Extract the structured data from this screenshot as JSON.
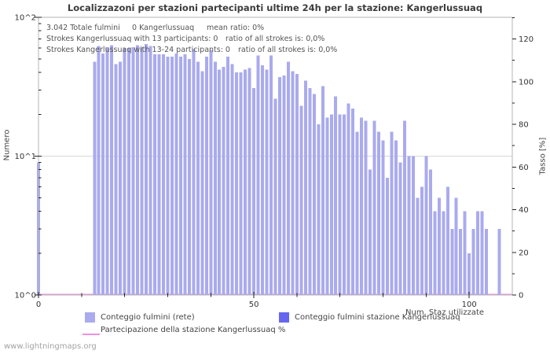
{
  "title": "Localizzazoni per stazioni partecipanti ultime 24h per la stazione: Kangerlussuaq",
  "watermark": "www.lightningmaps.org",
  "annotations": {
    "line1": [
      "3.042 Totale fulmini",
      "0 Kangerlussuaq",
      "mean ratio: 0%"
    ],
    "line2": [
      "Strokes Kangerlussuaq with 13 participants: 0",
      "ratio of all strokes is: 0,0%"
    ],
    "line3": [
      "Strokes Kangerlussuaq with 13-24 participants: 0",
      "ratio of all strokes is: 0,0%"
    ]
  },
  "legend": {
    "items": [
      {
        "label": "Conteggio fulmini (rete)",
        "color": "#aaaaee",
        "type": "box"
      },
      {
        "label": "Conteggio fulmini stazione Kangerlussuaq",
        "color": "#6666ee",
        "type": "box"
      },
      {
        "label": "Partecipazione della stazione Kangerlussuaq %",
        "color": "#ee90e0",
        "type": "line"
      }
    ]
  },
  "colors": {
    "network_bar": "#aaaaee",
    "station_bar": "#6666ee",
    "participation_line": "#ee90e0",
    "frame": "#b4b4b4",
    "gridline": "#d8d8d8",
    "tick": "#222222",
    "tick_label": "#333333"
  },
  "chart_data": {
    "type": "bar",
    "title": "Localizzazoni per stazioni partecipanti ultime 24h per la stazione: Kangerlussuaq",
    "x_axis": {
      "label": "Num. Staz utilizzate",
      "ticks": [
        0,
        50,
        100
      ],
      "minor_step": 10,
      "range": [
        0,
        110
      ]
    },
    "left_axis": {
      "label": "Numero",
      "scale": "log10",
      "ticks": [
        {
          "label": "10^0",
          "value": 1
        },
        {
          "label": "10^1",
          "value": 10
        },
        {
          "label": "10^2",
          "value": 100
        }
      ]
    },
    "right_axis": {
      "label": "Tasso [%]",
      "ticks": [
        0,
        20,
        40,
        60,
        80,
        100,
        120
      ],
      "minor_step": 10,
      "visible_max": 130
    },
    "grid": "horizontal line at 10^1 only",
    "legend_position": "bottom",
    "series": [
      {
        "name": "Conteggio fulmini (rete)",
        "type": "bar",
        "color": "#aaaaee",
        "x_meaning": "numero di stazioni utilizzate",
        "points": [
          [
            0,
            9
          ],
          [
            13,
            48
          ],
          [
            14,
            62
          ],
          [
            15,
            55
          ],
          [
            16,
            61
          ],
          [
            17,
            63
          ],
          [
            18,
            46
          ],
          [
            19,
            48
          ],
          [
            20,
            60
          ],
          [
            21,
            60
          ],
          [
            22,
            61
          ],
          [
            23,
            63
          ],
          [
            24,
            61
          ],
          [
            25,
            64
          ],
          [
            26,
            62
          ],
          [
            27,
            54
          ],
          [
            28,
            54
          ],
          [
            29,
            54
          ],
          [
            30,
            52
          ],
          [
            31,
            52
          ],
          [
            32,
            55
          ],
          [
            33,
            52
          ],
          [
            34,
            54
          ],
          [
            35,
            50
          ],
          [
            36,
            59
          ],
          [
            37,
            48
          ],
          [
            38,
            41
          ],
          [
            39,
            52
          ],
          [
            40,
            58
          ],
          [
            41,
            48
          ],
          [
            42,
            42
          ],
          [
            43,
            44
          ],
          [
            44,
            52
          ],
          [
            45,
            46
          ],
          [
            46,
            40
          ],
          [
            47,
            40
          ],
          [
            48,
            42
          ],
          [
            49,
            43
          ],
          [
            50,
            31
          ],
          [
            51,
            53
          ],
          [
            52,
            45
          ],
          [
            53,
            42
          ],
          [
            54,
            53
          ],
          [
            55,
            26
          ],
          [
            56,
            37
          ],
          [
            57,
            38
          ],
          [
            58,
            48
          ],
          [
            59,
            41
          ],
          [
            60,
            39
          ],
          [
            61,
            23
          ],
          [
            62,
            35
          ],
          [
            63,
            31
          ],
          [
            64,
            28
          ],
          [
            65,
            17
          ],
          [
            66,
            32
          ],
          [
            67,
            19
          ],
          [
            68,
            20
          ],
          [
            69,
            27
          ],
          [
            70,
            20
          ],
          [
            71,
            20
          ],
          [
            72,
            24
          ],
          [
            73,
            22
          ],
          [
            74,
            15
          ],
          [
            75,
            19
          ],
          [
            76,
            18
          ],
          [
            77,
            8
          ],
          [
            78,
            18
          ],
          [
            79,
            15
          ],
          [
            80,
            13
          ],
          [
            81,
            7
          ],
          [
            82,
            15
          ],
          [
            83,
            13
          ],
          [
            84,
            9
          ],
          [
            85,
            18
          ],
          [
            86,
            10
          ],
          [
            87,
            10
          ],
          [
            88,
            5
          ],
          [
            89,
            6
          ],
          [
            90,
            10
          ],
          [
            91,
            8
          ],
          [
            92,
            4
          ],
          [
            93,
            5
          ],
          [
            94,
            4
          ],
          [
            95,
            6
          ],
          [
            96,
            3
          ],
          [
            97,
            5
          ],
          [
            98,
            3
          ],
          [
            99,
            4
          ],
          [
            100,
            2
          ],
          [
            101,
            3
          ],
          [
            102,
            4
          ],
          [
            103,
            4
          ],
          [
            104,
            3
          ],
          [
            105,
            1
          ],
          [
            106,
            1
          ],
          [
            107,
            3
          ],
          [
            108,
            0
          ],
          [
            109,
            1
          ]
        ]
      },
      {
        "name": "Conteggio fulmini stazione Kangerlussuaq",
        "type": "bar",
        "color": "#6666ee",
        "points": []
      },
      {
        "name": "Partecipazione della stazione Kangerlussuaq %",
        "type": "line",
        "color": "#ee90e0",
        "constant_value_percent": 0
      }
    ]
  }
}
